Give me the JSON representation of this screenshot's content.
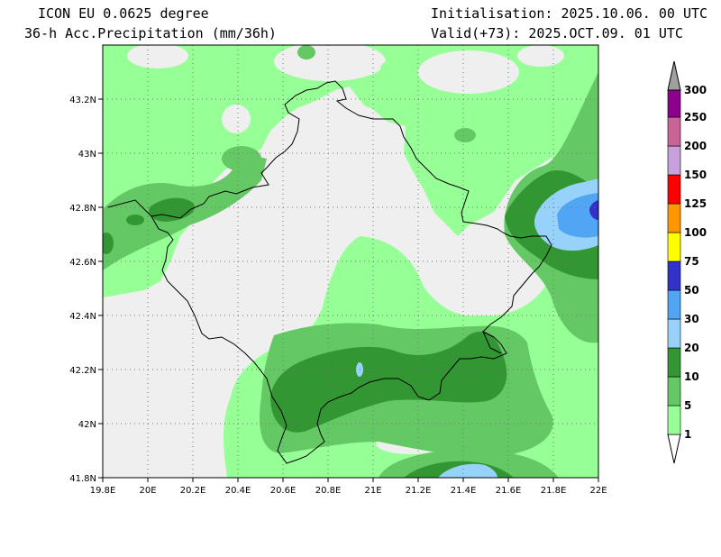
{
  "header": {
    "model": "ICON EU 0.0625 degree",
    "product": "36-h Acc.Precipitation (mm/36h)",
    "init": "Initialisation: 2025.10.06. 00 UTC",
    "valid": "Valid(+73): 2025.OCT.09. 01 UTC"
  },
  "map": {
    "lon_range": [
      19.8,
      22.0
    ],
    "lat_range": [
      41.8,
      43.4
    ],
    "x_ticks": [
      "19.8E",
      "20E",
      "20.2E",
      "20.4E",
      "20.6E",
      "20.8E",
      "21E",
      "21.2E",
      "21.4E",
      "21.6E",
      "21.8E",
      "22E"
    ],
    "y_ticks": [
      "41.8N",
      "42N",
      "42.2N",
      "42.4N",
      "42.6N",
      "42.8N",
      "43N",
      "43.2N"
    ],
    "grid": true,
    "background_color": "#efefef"
  },
  "legend": {
    "unit": "mm/36h",
    "bins": [
      {
        "label": "1",
        "color": "#96ff96"
      },
      {
        "label": "5",
        "color": "#64c864"
      },
      {
        "label": "10",
        "color": "#329632"
      },
      {
        "label": "20",
        "color": "#96d2fa"
      },
      {
        "label": "30",
        "color": "#50a5f5"
      },
      {
        "label": "50",
        "color": "#3232c8"
      },
      {
        "label": "75",
        "color": "#ffff00"
      },
      {
        "label": "100",
        "color": "#ff9600"
      },
      {
        "label": "125",
        "color": "#ff0000"
      },
      {
        "label": "150",
        "color": "#c8a0dc"
      },
      {
        "label": "200",
        "color": "#c86496"
      },
      {
        "label": "250",
        "color": "#8c008c"
      },
      {
        "label": "300",
        "color": "#a0a0a0"
      }
    ]
  }
}
